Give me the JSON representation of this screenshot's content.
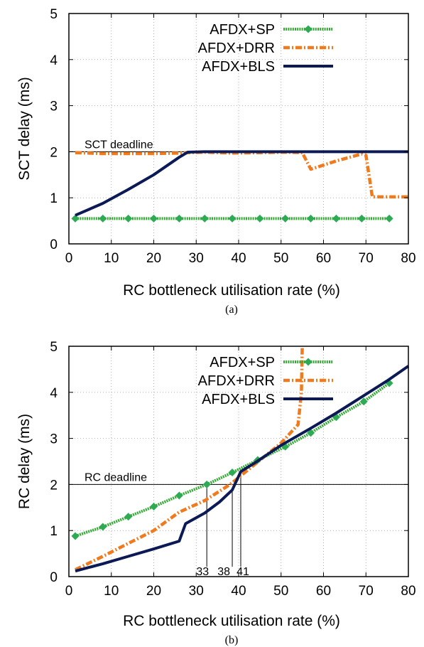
{
  "colors": {
    "sp": "#33aa33",
    "sp_marker": "#2eaa55",
    "drr": "#f07a1e",
    "bls": "#0b1a55"
  },
  "chart_data": [
    {
      "type": "line",
      "panel_label": "(a)",
      "xlabel": "RC bottleneck utilisation rate (%)",
      "ylabel": "SCT delay (ms)",
      "xlim": [
        0,
        80
      ],
      "ylim": [
        0,
        5
      ],
      "xticks": [
        0,
        10,
        20,
        30,
        40,
        50,
        60,
        70,
        80
      ],
      "yticks": [
        0,
        1,
        2,
        3,
        4,
        5
      ],
      "grid": true,
      "legend_position": "top-right",
      "annotations": [
        {
          "text": "SCT deadline",
          "x": 2,
          "y": 2
        }
      ],
      "series": [
        {
          "name": "AFDX+SP",
          "color": "#33aa33",
          "marker": "diamond",
          "x": [
            1.5,
            8,
            14,
            20,
            26,
            32,
            38.5,
            45,
            51,
            57,
            63,
            69,
            75.5
          ],
          "y": [
            0.55,
            0.55,
            0.55,
            0.55,
            0.55,
            0.55,
            0.55,
            0.55,
            0.55,
            0.55,
            0.55,
            0.55,
            0.55
          ]
        },
        {
          "name": "AFDX+DRR",
          "color": "#f07a1e",
          "marker": "none",
          "x": [
            1.5,
            8,
            14,
            20,
            26,
            28,
            32,
            38.5,
            45,
            51,
            55,
            57,
            63,
            69,
            70,
            71.5,
            80
          ],
          "y": [
            1.98,
            1.96,
            1.96,
            1.96,
            1.97,
            1.98,
            1.99,
            1.97,
            1.98,
            1.99,
            1.98,
            1.62,
            1.8,
            1.95,
            1.92,
            1.02,
            1.02
          ]
        },
        {
          "name": "AFDX+BLS",
          "color": "#0b1a55",
          "marker": "none",
          "x": [
            1.5,
            8,
            14,
            20,
            26,
            28,
            32,
            38.5,
            45,
            51,
            57,
            63,
            69,
            75.5,
            80
          ],
          "y": [
            0.62,
            0.88,
            1.18,
            1.5,
            1.88,
            1.99,
            2.0,
            2.0,
            2.0,
            2.0,
            2.0,
            2.0,
            2.0,
            2.0,
            2.0
          ]
        }
      ]
    },
    {
      "type": "line",
      "panel_label": "(b)",
      "xlabel": "RC bottleneck utilisation rate (%)",
      "ylabel": "RC delay (ms)",
      "xlim": [
        0,
        80
      ],
      "ylim": [
        0,
        5
      ],
      "xticks": [
        0,
        10,
        20,
        30,
        40,
        50,
        60,
        70,
        80
      ],
      "yticks": [
        0,
        1,
        2,
        3,
        4,
        5
      ],
      "grid": true,
      "legend_position": "top-right",
      "annotations": [
        {
          "text": "RC deadline",
          "x": 2,
          "y": 2
        },
        {
          "text": "33",
          "x": 33
        },
        {
          "text": "38",
          "x": 38
        },
        {
          "text": "41",
          "x": 41
        }
      ],
      "series": [
        {
          "name": "AFDX+SP",
          "color": "#33aa33",
          "marker": "diamond",
          "x": [
            1.5,
            8,
            14,
            20,
            26,
            32.5,
            38.5,
            44.5,
            51,
            57,
            63,
            69.5,
            75.5
          ],
          "y": [
            0.88,
            1.08,
            1.3,
            1.52,
            1.76,
            2.0,
            2.26,
            2.53,
            2.82,
            3.12,
            3.46,
            3.8,
            4.2
          ]
        },
        {
          "name": "AFDX+DRR",
          "color": "#f07a1e",
          "marker": "none",
          "x": [
            1.5,
            8,
            14,
            20,
            26,
            32,
            38,
            44,
            50,
            54,
            54.8,
            55
          ],
          "y": [
            0.15,
            0.44,
            0.72,
            1.0,
            1.4,
            1.65,
            2.0,
            2.45,
            2.9,
            3.3,
            4.0,
            5.0
          ]
        },
        {
          "name": "AFDX+BLS",
          "color": "#0b1a55",
          "marker": "none",
          "x": [
            1.5,
            8,
            14,
            20,
            26,
            27.5,
            32,
            35.5,
            38.5,
            40.5,
            44,
            50,
            57,
            63,
            69,
            75,
            80
          ],
          "y": [
            0.12,
            0.28,
            0.44,
            0.6,
            0.77,
            1.15,
            1.38,
            1.62,
            1.88,
            2.28,
            2.48,
            2.85,
            3.22,
            3.55,
            3.9,
            4.25,
            4.57
          ]
        }
      ]
    }
  ]
}
